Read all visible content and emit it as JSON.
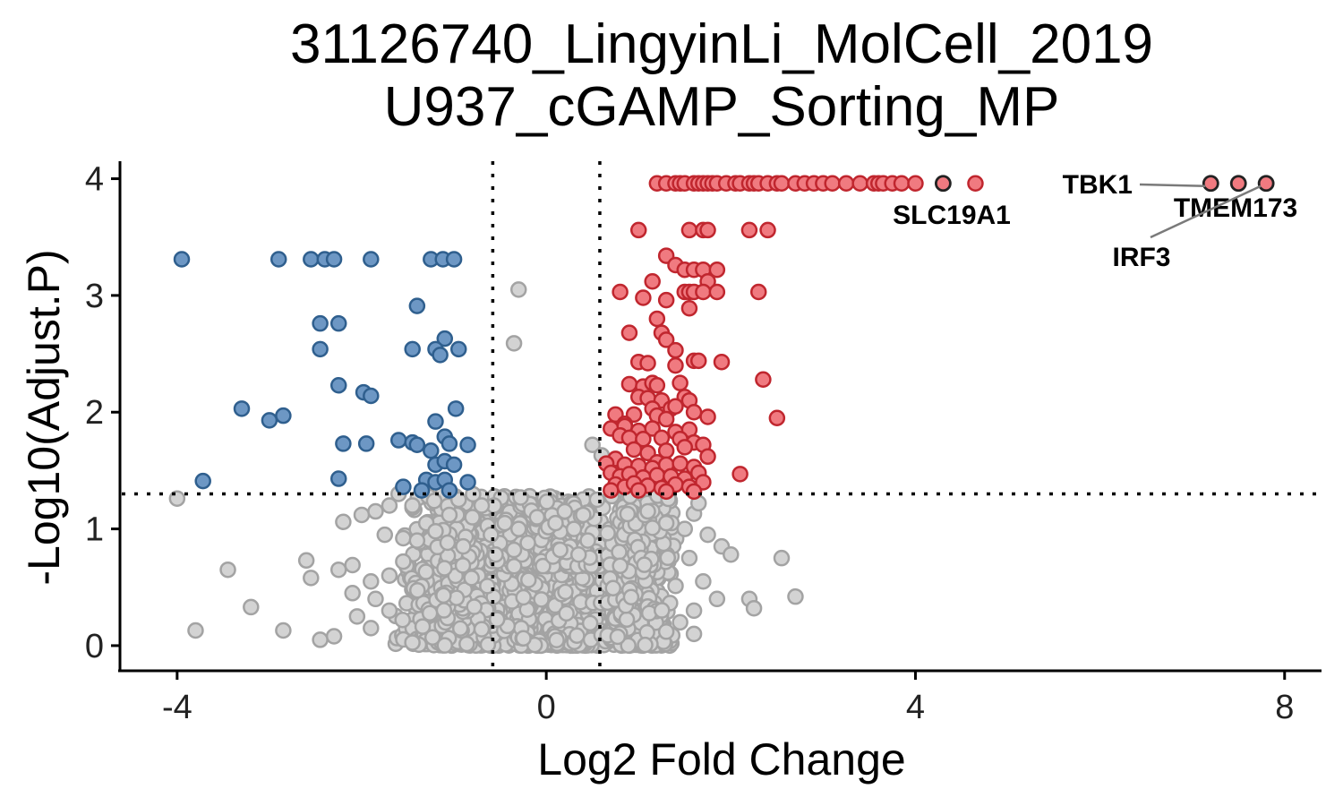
{
  "chart_data": {
    "type": "scatter",
    "title_lines": [
      "31126740_LingyinLi_MolCell_2019",
      "U937_cGAMP_Sorting_MP"
    ],
    "xlabel": "Log2 Fold Change",
    "ylabel": "-Log10(Adjust.P)",
    "xlim": [
      -4.6,
      8.4
    ],
    "ylim": [
      -0.2,
      4.15
    ],
    "x_ticks": [
      -4,
      0,
      4,
      8
    ],
    "y_ticks": [
      0,
      1,
      2,
      3,
      4
    ],
    "thresholds": {
      "fc": [
        -0.58,
        0.58
      ],
      "p": 1.3
    },
    "grid": false,
    "legend": "none",
    "colors": {
      "down_fill": "#6d97c4",
      "down_stroke": "#2f5f8e",
      "up_fill": "#f07a80",
      "up_stroke": "#c0262e",
      "ns_fill": "#d3d3d3",
      "ns_stroke": "#a3a3a3",
      "hl_fill": "#f07a80",
      "hl_stroke": "#222222"
    },
    "highlighted": [
      {
        "gene": "TBK1",
        "x": 7.2,
        "y": 3.96
      },
      {
        "gene": "TMEM173",
        "x": 7.5,
        "y": 3.96
      },
      {
        "gene": "IRF3",
        "x": 7.8,
        "y": 3.96
      },
      {
        "gene": "SLC19A1",
        "x": 4.3,
        "y": 3.96
      }
    ],
    "down": [
      [
        -3.95,
        3.31
      ],
      [
        -2.9,
        3.31
      ],
      [
        -2.55,
        3.31
      ],
      [
        -2.4,
        3.31
      ],
      [
        -2.3,
        3.31
      ],
      [
        -1.9,
        3.31
      ],
      [
        -1.25,
        3.31
      ],
      [
        -1.12,
        3.31
      ],
      [
        -1.0,
        3.31
      ],
      [
        -1.4,
        2.91
      ],
      [
        -2.45,
        2.76
      ],
      [
        -2.25,
        2.76
      ],
      [
        -1.1,
        2.63
      ],
      [
        -2.45,
        2.54
      ],
      [
        -1.45,
        2.54
      ],
      [
        -1.2,
        2.54
      ],
      [
        -0.95,
        2.54
      ],
      [
        -1.15,
        2.49
      ],
      [
        -2.25,
        2.23
      ],
      [
        -1.98,
        2.17
      ],
      [
        -1.9,
        2.14
      ],
      [
        -3.3,
        2.03
      ],
      [
        -0.98,
        2.03
      ],
      [
        -2.85,
        1.97
      ],
      [
        -3.0,
        1.93
      ],
      [
        -1.2,
        1.92
      ],
      [
        -2.2,
        1.73
      ],
      [
        -1.95,
        1.73
      ],
      [
        -1.6,
        1.76
      ],
      [
        -1.45,
        1.74
      ],
      [
        -1.4,
        1.72
      ],
      [
        -1.1,
        1.79
      ],
      [
        -1.05,
        1.73
      ],
      [
        -0.85,
        1.72
      ],
      [
        -1.25,
        1.67
      ],
      [
        -1.2,
        1.55
      ],
      [
        -1.1,
        1.58
      ],
      [
        -1.0,
        1.55
      ],
      [
        -2.25,
        1.43
      ],
      [
        -3.72,
        1.41
      ],
      [
        -1.3,
        1.42
      ],
      [
        -1.2,
        1.4
      ],
      [
        -1.1,
        1.42
      ],
      [
        -0.85,
        1.4
      ],
      [
        -1.55,
        1.36
      ],
      [
        -1.35,
        1.33
      ],
      [
        -1.05,
        1.33
      ]
    ],
    "up": [
      [
        1.2,
        3.96
      ],
      [
        1.3,
        3.96
      ],
      [
        1.4,
        3.96
      ],
      [
        1.45,
        3.96
      ],
      [
        1.5,
        3.96
      ],
      [
        1.6,
        3.96
      ],
      [
        1.65,
        3.96
      ],
      [
        1.7,
        3.96
      ],
      [
        1.75,
        3.96
      ],
      [
        1.8,
        3.96
      ],
      [
        1.85,
        3.96
      ],
      [
        1.95,
        3.96
      ],
      [
        2.05,
        3.96
      ],
      [
        2.1,
        3.96
      ],
      [
        2.2,
        3.96
      ],
      [
        2.25,
        3.96
      ],
      [
        2.3,
        3.96
      ],
      [
        2.4,
        3.96
      ],
      [
        2.5,
        3.96
      ],
      [
        2.55,
        3.96
      ],
      [
        2.7,
        3.96
      ],
      [
        2.8,
        3.96
      ],
      [
        2.9,
        3.96
      ],
      [
        3.0,
        3.96
      ],
      [
        3.1,
        3.96
      ],
      [
        3.25,
        3.96
      ],
      [
        3.4,
        3.96
      ],
      [
        3.55,
        3.96
      ],
      [
        3.6,
        3.96
      ],
      [
        3.65,
        3.96
      ],
      [
        3.75,
        3.96
      ],
      [
        3.85,
        3.96
      ],
      [
        4.0,
        3.96
      ],
      [
        4.65,
        3.96
      ],
      [
        1.0,
        3.56
      ],
      [
        1.55,
        3.56
      ],
      [
        1.7,
        3.56
      ],
      [
        1.75,
        3.56
      ],
      [
        2.2,
        3.56
      ],
      [
        2.4,
        3.56
      ],
      [
        1.3,
        3.34
      ],
      [
        1.4,
        3.26
      ],
      [
        1.5,
        3.22
      ],
      [
        1.6,
        3.22
      ],
      [
        1.7,
        3.22
      ],
      [
        1.85,
        3.22
      ],
      [
        1.15,
        3.12
      ],
      [
        1.75,
        3.12
      ],
      [
        0.8,
        3.03
      ],
      [
        1.5,
        3.03
      ],
      [
        1.55,
        3.03
      ],
      [
        1.6,
        3.03
      ],
      [
        1.7,
        3.03
      ],
      [
        1.85,
        3.03
      ],
      [
        2.3,
        3.03
      ],
      [
        1.05,
        2.98
      ],
      [
        1.3,
        2.96
      ],
      [
        1.55,
        2.89
      ],
      [
        1.2,
        2.8
      ],
      [
        0.9,
        2.68
      ],
      [
        1.25,
        2.68
      ],
      [
        1.3,
        2.62
      ],
      [
        1.4,
        2.53
      ],
      [
        1.0,
        2.43
      ],
      [
        1.1,
        2.42
      ],
      [
        1.4,
        2.4
      ],
      [
        1.6,
        2.44
      ],
      [
        1.65,
        2.44
      ],
      [
        1.9,
        2.43
      ],
      [
        2.35,
        2.28
      ],
      [
        0.9,
        2.24
      ],
      [
        1.05,
        2.22
      ],
      [
        1.15,
        2.25
      ],
      [
        1.2,
        2.23
      ],
      [
        1.45,
        2.25
      ],
      [
        1.0,
        2.13
      ],
      [
        1.1,
        2.12
      ],
      [
        1.25,
        2.1
      ],
      [
        1.5,
        2.13
      ],
      [
        1.55,
        2.1
      ],
      [
        1.15,
        2.03
      ],
      [
        1.35,
        2.03
      ],
      [
        1.4,
        2.05
      ],
      [
        1.6,
        2.0
      ],
      [
        0.75,
        1.98
      ],
      [
        0.95,
        1.98
      ],
      [
        1.2,
        1.97
      ],
      [
        1.75,
        1.96
      ],
      [
        2.5,
        1.95
      ],
      [
        1.3,
        1.94
      ],
      [
        0.85,
        1.9
      ],
      [
        0.7,
        1.86
      ],
      [
        0.85,
        1.88
      ],
      [
        1.0,
        1.84
      ],
      [
        1.15,
        1.86
      ],
      [
        1.4,
        1.83
      ],
      [
        1.55,
        1.85
      ],
      [
        0.8,
        1.8
      ],
      [
        0.9,
        1.78
      ],
      [
        1.05,
        1.77
      ],
      [
        1.25,
        1.78
      ],
      [
        1.45,
        1.77
      ],
      [
        1.6,
        1.74
      ],
      [
        1.7,
        1.72
      ],
      [
        0.95,
        1.68
      ],
      [
        1.1,
        1.65
      ],
      [
        1.3,
        1.67
      ],
      [
        1.5,
        1.7
      ],
      [
        1.75,
        1.62
      ],
      [
        0.75,
        1.6
      ],
      [
        1.2,
        1.57
      ],
      [
        0.65,
        1.56
      ],
      [
        0.85,
        1.55
      ],
      [
        1.0,
        1.54
      ],
      [
        1.15,
        1.52
      ],
      [
        1.3,
        1.55
      ],
      [
        1.45,
        1.56
      ],
      [
        1.6,
        1.53
      ],
      [
        2.1,
        1.47
      ],
      [
        0.7,
        1.48
      ],
      [
        0.8,
        1.45
      ],
      [
        0.9,
        1.47
      ],
      [
        1.05,
        1.44
      ],
      [
        1.2,
        1.46
      ],
      [
        1.35,
        1.45
      ],
      [
        1.5,
        1.43
      ],
      [
        1.65,
        1.48
      ],
      [
        0.75,
        1.38
      ],
      [
        0.85,
        1.36
      ],
      [
        0.95,
        1.39
      ],
      [
        1.1,
        1.37
      ],
      [
        1.25,
        1.35
      ],
      [
        1.4,
        1.38
      ],
      [
        1.55,
        1.36
      ],
      [
        1.7,
        1.4
      ],
      [
        0.7,
        1.33
      ],
      [
        1.0,
        1.33
      ],
      [
        1.3,
        1.32
      ],
      [
        1.6,
        1.32
      ]
    ],
    "ns": [
      [
        -0.3,
        3.05
      ],
      [
        -0.35,
        2.59
      ],
      [
        0.5,
        1.72
      ],
      [
        0.6,
        1.63
      ],
      [
        -4.0,
        1.26
      ],
      [
        -3.45,
        0.65
      ],
      [
        -3.2,
        0.33
      ],
      [
        -3.8,
        0.13
      ],
      [
        -2.85,
        0.13
      ],
      [
        -2.6,
        0.73
      ],
      [
        -2.55,
        0.58
      ],
      [
        -2.25,
        0.65
      ],
      [
        -2.1,
        0.69
      ],
      [
        -2.2,
        1.06
      ],
      [
        -2.0,
        1.12
      ],
      [
        -1.85,
        1.15
      ],
      [
        -1.7,
        1.2
      ],
      [
        -1.6,
        1.3
      ],
      [
        -1.75,
        0.95
      ],
      [
        -1.55,
        0.92
      ],
      [
        -1.4,
        0.9
      ],
      [
        -1.55,
        0.72
      ],
      [
        -1.7,
        0.6
      ],
      [
        -1.9,
        0.55
      ],
      [
        -2.1,
        0.45
      ],
      [
        -1.85,
        0.4
      ],
      [
        -2.05,
        0.25
      ],
      [
        -1.7,
        0.3
      ],
      [
        -1.9,
        0.15
      ],
      [
        -2.3,
        0.08
      ],
      [
        -2.45,
        0.05
      ],
      [
        -1.45,
        1.2
      ],
      [
        -1.3,
        1.05
      ],
      [
        -1.2,
        0.98
      ],
      [
        -1.05,
        1.12
      ],
      [
        -0.95,
        1.25
      ],
      [
        -0.8,
        1.1
      ],
      [
        -0.7,
        1.2
      ],
      [
        -0.6,
        0.95
      ],
      [
        -0.45,
        1.05
      ],
      [
        -0.3,
        1.0
      ],
      [
        -0.2,
        0.88
      ],
      [
        -0.1,
        1.1
      ],
      [
        0.1,
        1.05
      ],
      [
        0.2,
        1.15
      ],
      [
        0.3,
        1.0
      ],
      [
        0.4,
        1.12
      ],
      [
        0.45,
        0.9
      ],
      [
        0.55,
        1.25
      ],
      [
        0.15,
        0.82
      ],
      [
        0.35,
        0.78
      ],
      [
        -0.35,
        0.82
      ],
      [
        -0.55,
        0.78
      ],
      [
        -0.9,
        0.85
      ],
      [
        1.75,
        0.95
      ],
      [
        1.9,
        0.85
      ],
      [
        2.0,
        0.78
      ],
      [
        2.55,
        0.75
      ],
      [
        1.55,
        0.75
      ],
      [
        1.7,
        0.55
      ],
      [
        1.85,
        0.4
      ],
      [
        2.2,
        0.4
      ],
      [
        2.25,
        0.32
      ],
      [
        2.7,
        0.42
      ],
      [
        1.6,
        0.3
      ],
      [
        1.45,
        0.2
      ],
      [
        1.3,
        0.12
      ],
      [
        1.6,
        0.1
      ],
      [
        1.5,
        1.0
      ],
      [
        1.3,
        1.05
      ],
      [
        1.1,
        1.15
      ],
      [
        1.6,
        1.13
      ],
      [
        1.65,
        1.22
      ]
    ],
    "ns_cluster": [
      {
        "x0": -1.65,
        "x1": 1.25,
        "y0": 0.0,
        "y1": 0.72,
        "n": 1400
      },
      {
        "x0": -1.15,
        "x1": 0.95,
        "y0": 0.68,
        "y1": 1.28,
        "n": 380
      },
      {
        "x0": 0.6,
        "x1": 1.45,
        "y0": 0.0,
        "y1": 1.3,
        "n": 450
      },
      {
        "x0": -1.55,
        "x1": -0.6,
        "y0": 0.0,
        "y1": 1.3,
        "n": 260
      }
    ]
  }
}
